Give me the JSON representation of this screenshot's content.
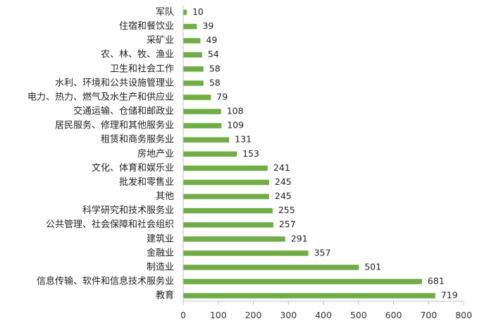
{
  "chart_data": {
    "type": "bar",
    "orientation": "horizontal",
    "categories": [
      "军队",
      "住宿和餐饮业",
      "采矿业",
      "农、林、牧、渔业",
      "卫生和社会工作",
      "水利、环境和公共设施管理业",
      "电力、热力、燃气及水生产和供应业",
      "交通运输、仓储和邮政业",
      "居民服务、修理和其他服务业",
      "租赁和商务服务业",
      "房地产业",
      "文化、体育和娱乐业",
      "批发和零售业",
      "其他",
      "科学研究和技术服务业",
      "公共管理、社会保障和社会组织",
      "建筑业",
      "金融业",
      "制造业",
      "信息传输、软件和信息技术服务业",
      "教育"
    ],
    "values": [
      10,
      39,
      49,
      54,
      58,
      58,
      79,
      108,
      109,
      131,
      153,
      241,
      245,
      245,
      255,
      257,
      291,
      357,
      501,
      681,
      719
    ],
    "value_labels": [
      "10",
      "39",
      "49",
      "54",
      "58",
      "58",
      "79",
      "108",
      "109",
      "131",
      "153",
      "241",
      "245",
      "245",
      "255",
      "257",
      "291",
      "357",
      "501",
      "681",
      "719"
    ],
    "xticks": [
      0,
      100,
      200,
      300,
      400,
      500,
      600,
      700,
      800
    ],
    "xtick_labels": [
      "0",
      "100",
      "200",
      "300",
      "400",
      "500",
      "600",
      "700",
      "800"
    ],
    "xlim": [
      0,
      800
    ],
    "grid": false,
    "legend": "none",
    "bar_color": "#70ad47",
    "axis_color": "#bfbfbf"
  }
}
